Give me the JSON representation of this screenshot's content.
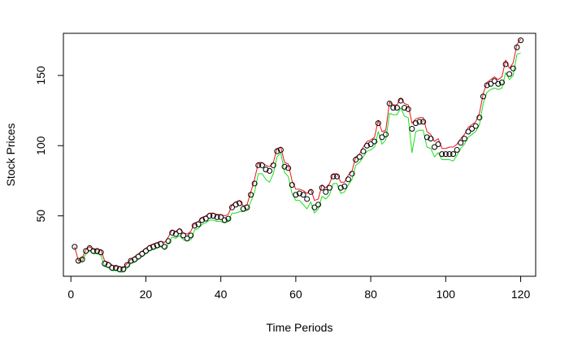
{
  "chart_data": {
    "type": "line",
    "title": "",
    "xlabel": "Time Periods",
    "ylabel": "Stock Prices",
    "xlim": [
      -2,
      124
    ],
    "ylim": [
      7,
      180
    ],
    "x_ticks": [
      0,
      20,
      40,
      60,
      80,
      100,
      120
    ],
    "y_ticks": [
      50,
      100,
      150
    ],
    "x_tick_labels": [
      "0",
      "20",
      "40",
      "60",
      "80",
      "100",
      "120"
    ],
    "y_tick_labels": [
      "50",
      "100",
      "150"
    ],
    "grid": false,
    "legend": "none",
    "series": [
      {
        "style": "points",
        "color": "#000000",
        "x": [
          1,
          2,
          3,
          4,
          5,
          6,
          7,
          8,
          9,
          10,
          11,
          12,
          13,
          14,
          15,
          16,
          17,
          18,
          19,
          20,
          21,
          22,
          23,
          24,
          25,
          26,
          27,
          28,
          29,
          30,
          31,
          32,
          33,
          34,
          35,
          36,
          37,
          38,
          39,
          40,
          41,
          42,
          43,
          44,
          45,
          46,
          47,
          48,
          49,
          50,
          51,
          52,
          53,
          54,
          55,
          56,
          57,
          58,
          59,
          60,
          61,
          62,
          63,
          64,
          65,
          66,
          67,
          68,
          69,
          70,
          71,
          72,
          73,
          74,
          75,
          76,
          77,
          78,
          79,
          80,
          81,
          82,
          83,
          84,
          85,
          86,
          87,
          88,
          89,
          90,
          91,
          92,
          93,
          94,
          95,
          96,
          97,
          98,
          99,
          100,
          101,
          102,
          103,
          104,
          105,
          106,
          107,
          108,
          109,
          110,
          111,
          112,
          113,
          114,
          115,
          116,
          117,
          118,
          119,
          120
        ],
        "y": [
          28,
          18,
          19,
          25,
          27,
          25,
          25,
          24,
          16,
          15,
          13,
          13,
          12,
          12,
          15,
          18,
          19,
          21,
          23,
          25,
          27,
          28,
          29,
          30,
          28,
          32,
          38,
          37,
          39,
          36,
          34,
          36,
          43,
          44,
          47,
          48,
          50,
          50,
          49,
          49,
          47,
          48,
          56,
          58,
          59,
          55,
          56,
          65,
          73,
          86,
          86,
          83,
          82,
          86,
          96,
          97,
          85,
          84,
          72,
          65,
          66,
          65,
          62,
          67,
          56,
          58,
          70,
          67,
          70,
          78,
          78,
          70,
          71,
          76,
          80,
          90,
          92,
          96,
          100,
          101,
          103,
          116,
          106,
          108,
          130,
          127,
          127,
          132,
          127,
          126,
          112,
          116,
          117,
          117,
          106,
          105,
          99,
          101,
          94,
          94,
          94,
          94,
          97,
          102,
          105,
          110,
          112,
          114,
          120,
          135,
          143,
          144,
          146,
          144,
          145,
          158,
          151,
          155,
          170,
          175
        ]
      },
      {
        "style": "line",
        "color": "#e8141c",
        "x": [
          1,
          2,
          3,
          4,
          5,
          6,
          7,
          8,
          9,
          10,
          11,
          12,
          13,
          14,
          15,
          16,
          17,
          18,
          19,
          20,
          21,
          22,
          23,
          24,
          25,
          26,
          27,
          28,
          29,
          30,
          31,
          32,
          33,
          34,
          35,
          36,
          37,
          38,
          39,
          40,
          41,
          42,
          43,
          44,
          45,
          46,
          47,
          48,
          49,
          50,
          51,
          52,
          53,
          54,
          55,
          56,
          57,
          58,
          59,
          60,
          61,
          62,
          63,
          64,
          65,
          66,
          67,
          68,
          69,
          70,
          71,
          72,
          73,
          74,
          75,
          76,
          77,
          78,
          79,
          80,
          81,
          82,
          83,
          84,
          85,
          86,
          87,
          88,
          89,
          90,
          91,
          92,
          93,
          94,
          95,
          96,
          97,
          98,
          99,
          100,
          101,
          102,
          103,
          104,
          105,
          106,
          107,
          108,
          109,
          110,
          111,
          112,
          113,
          114,
          115,
          116,
          117,
          118,
          119,
          120
        ],
        "y": [
          28,
          18,
          20,
          26,
          28,
          26,
          26,
          26,
          18,
          17,
          15,
          14,
          14,
          13,
          16,
          19,
          21,
          23,
          25,
          27,
          29,
          30,
          31,
          32,
          31,
          35,
          40,
          39,
          41,
          38,
          37,
          39,
          45,
          46,
          49,
          50,
          52,
          52,
          51,
          51,
          50,
          51,
          58,
          60,
          61,
          57,
          58,
          67,
          76,
          88,
          88,
          86,
          85,
          88,
          98,
          99,
          88,
          87,
          75,
          69,
          69,
          68,
          66,
          69,
          61,
          62,
          72,
          70,
          73,
          80,
          80,
          74,
          74,
          79,
          82,
          92,
          94,
          99,
          103,
          104,
          106,
          118,
          110,
          111,
          131,
          129,
          129,
          134,
          130,
          129,
          116,
          119,
          120,
          120,
          110,
          108,
          103,
          105,
          98,
          98,
          99,
          99,
          101,
          105,
          108,
          113,
          115,
          117,
          123,
          137,
          145,
          147,
          149,
          147,
          149,
          161,
          155,
          159,
          172,
          176
        ]
      },
      {
        "style": "line",
        "color": "#19e019",
        "x": [
          2,
          3,
          4,
          5,
          6,
          7,
          8,
          9,
          10,
          11,
          12,
          13,
          14,
          15,
          16,
          17,
          18,
          19,
          20,
          21,
          22,
          23,
          24,
          25,
          26,
          27,
          28,
          29,
          30,
          31,
          32,
          33,
          34,
          35,
          36,
          37,
          38,
          39,
          40,
          41,
          42,
          43,
          44,
          45,
          46,
          47,
          48,
          49,
          50,
          51,
          52,
          53,
          54,
          55,
          56,
          57,
          58,
          59,
          60,
          61,
          62,
          63,
          64,
          65,
          66,
          67,
          68,
          69,
          70,
          71,
          72,
          73,
          74,
          75,
          76,
          77,
          78,
          79,
          80,
          81,
          82,
          83,
          84,
          85,
          86,
          87,
          88,
          89,
          90,
          91,
          92,
          93,
          94,
          95,
          96,
          97,
          98,
          99,
          100,
          101,
          102,
          103,
          104,
          105,
          106,
          107,
          108,
          109,
          110,
          111,
          112,
          113,
          114,
          115,
          116,
          117,
          118,
          119,
          120
        ],
        "y": [
          17,
          18,
          23,
          25,
          23,
          23,
          22,
          14,
          13,
          11,
          11,
          10,
          10,
          13,
          16,
          17,
          19,
          21,
          23,
          25,
          26,
          27,
          28,
          26,
          30,
          35,
          34,
          36,
          33,
          32,
          33,
          40,
          41,
          44,
          45,
          47,
          47,
          46,
          46,
          45,
          46,
          52,
          52,
          53,
          53,
          54,
          60,
          67,
          80,
          80,
          76,
          74,
          80,
          92,
          95,
          81,
          78,
          66,
          61,
          61,
          58,
          55,
          60,
          52,
          55,
          64,
          62,
          65,
          73,
          73,
          66,
          67,
          72,
          76,
          86,
          88,
          92,
          96,
          97,
          99,
          110,
          101,
          104,
          123,
          122,
          122,
          127,
          121,
          120,
          95,
          110,
          111,
          111,
          99,
          98,
          92,
          95,
          90,
          90,
          90,
          89,
          93,
          98,
          101,
          106,
          108,
          110,
          115,
          130,
          138,
          140,
          141,
          140,
          141,
          152,
          147,
          150,
          165,
          166
        ]
      }
    ]
  }
}
